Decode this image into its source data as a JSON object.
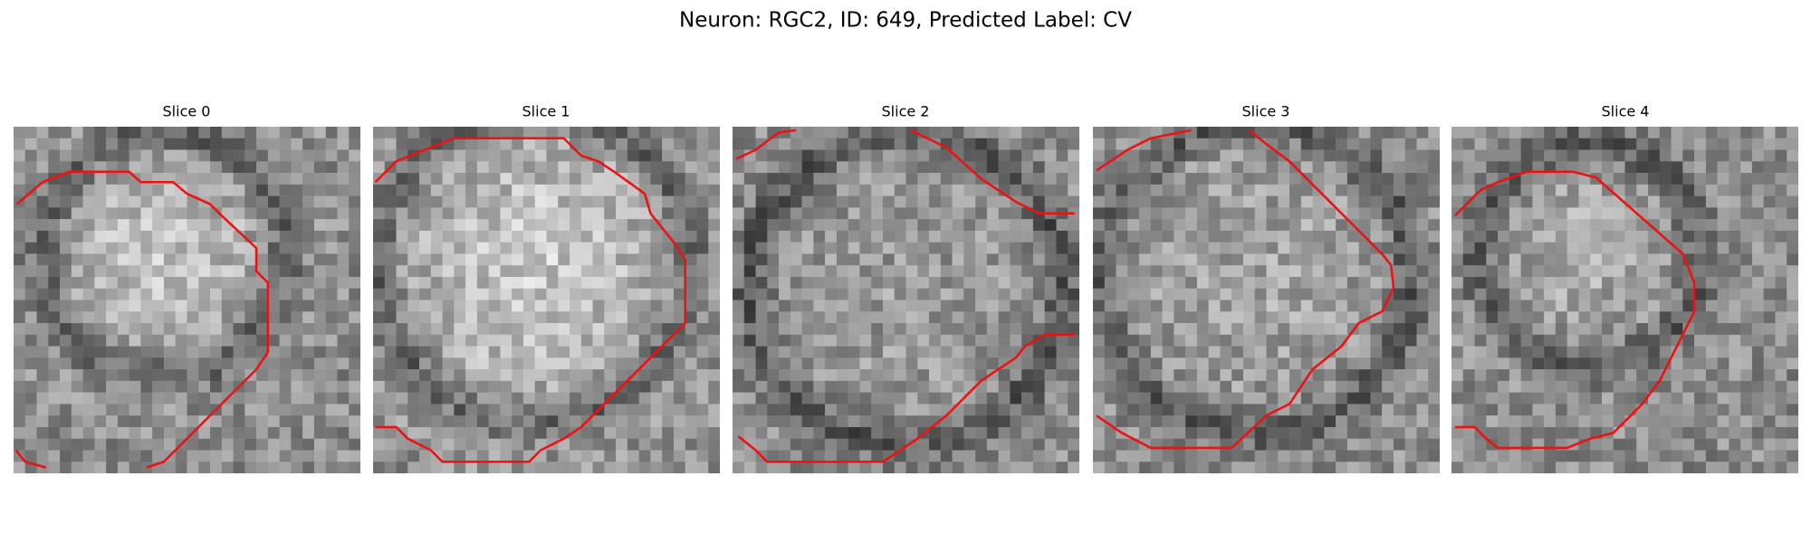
{
  "figure": {
    "title": "Neuron: RGC2, ID: 649, Predicted Label: CV",
    "panels": [
      {
        "title": "Slice 0"
      },
      {
        "title": "Slice 1"
      },
      {
        "title": "Slice 2"
      },
      {
        "title": "Slice 3"
      },
      {
        "title": "Slice 4"
      }
    ]
  }
}
